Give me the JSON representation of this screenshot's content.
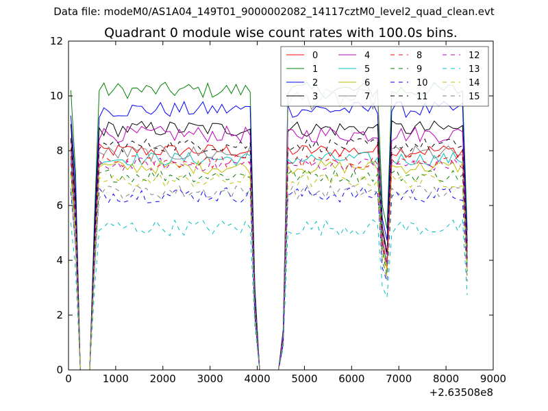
{
  "figure": {
    "suptitle": "Data file: modeM0/AS1A04_149T01_9000002082_14117cztM0_level2_quad_clean.evt"
  },
  "chart_data": {
    "type": "line",
    "title": "Quadrant 0 module wise count rates with 100.0s bins.",
    "xlabel": "",
    "ylabel": "",
    "x_offset_label": "+2.63508e8",
    "xlim": [
      0,
      9000
    ],
    "ylim": [
      0,
      12
    ],
    "xticks": [
      0,
      1000,
      2000,
      3000,
      4000,
      5000,
      6000,
      7000,
      8000,
      9000
    ],
    "yticks": [
      0,
      2,
      4,
      6,
      8,
      10,
      12
    ],
    "legend_location": "top-right",
    "legend_columns": 4,
    "x_start": 50,
    "x_step": 100,
    "x_count": 85,
    "gaps_zero_ranges": [
      [
        250,
        450
      ],
      [
        4050,
        4450
      ]
    ],
    "ramp_up_points": [
      [
        550,
        0.55
      ],
      [
        650,
        1.0
      ]
    ],
    "ramp_down_points": [
      [
        3850,
        1.0
      ],
      [
        3950,
        0.3
      ]
    ],
    "ramp2_up_points": [
      [
        4550,
        0.15
      ],
      [
        4650,
        1.0
      ]
    ],
    "dip_points": [
      [
        6650,
        0.6
      ],
      [
        6750,
        0.5
      ]
    ],
    "end_drop_points": [
      [
        8450,
        0.5
      ]
    ],
    "series": [
      {
        "name": "0",
        "color": "#ff0000",
        "dash": "solid",
        "level": 8.0,
        "noise": 0.25
      },
      {
        "name": "1",
        "color": "#008000",
        "dash": "solid",
        "level": 10.2,
        "noise": 0.3
      },
      {
        "name": "2",
        "color": "#0000ff",
        "dash": "solid",
        "level": 9.5,
        "noise": 0.3
      },
      {
        "name": "3",
        "color": "#000000",
        "dash": "solid",
        "level": 8.8,
        "noise": 0.3
      },
      {
        "name": "4",
        "color": "#bf00bf",
        "dash": "solid",
        "level": 8.6,
        "noise": 0.3
      },
      {
        "name": "5",
        "color": "#00bfbf",
        "dash": "solid",
        "level": 7.7,
        "noise": 0.25
      },
      {
        "name": "6",
        "color": "#bfbf00",
        "dash": "solid",
        "level": 7.4,
        "noise": 0.25
      },
      {
        "name": "7",
        "color": "#808080",
        "dash": "solid",
        "level": 7.9,
        "noise": 0.3
      },
      {
        "name": "8",
        "color": "#ff0000",
        "dash": "dashed",
        "level": 7.6,
        "noise": 0.25
      },
      {
        "name": "9",
        "color": "#008000",
        "dash": "dashed",
        "level": 7.1,
        "noise": 0.25
      },
      {
        "name": "10",
        "color": "#0000ff",
        "dash": "dashed",
        "level": 6.4,
        "noise": 0.3
      },
      {
        "name": "11",
        "color": "#000000",
        "dash": "dashed",
        "level": 8.2,
        "noise": 0.25
      },
      {
        "name": "12",
        "color": "#bf00bf",
        "dash": "dashed",
        "level": 7.5,
        "noise": 0.25
      },
      {
        "name": "13",
        "color": "#00bfbf",
        "dash": "dashed",
        "level": 5.2,
        "noise": 0.3
      },
      {
        "name": "14",
        "color": "#bfbf00",
        "dash": "dashed",
        "level": 6.9,
        "noise": 0.25
      },
      {
        "name": "15",
        "color": "#808080",
        "dash": "dashed",
        "level": 6.5,
        "noise": 0.25
      }
    ]
  }
}
